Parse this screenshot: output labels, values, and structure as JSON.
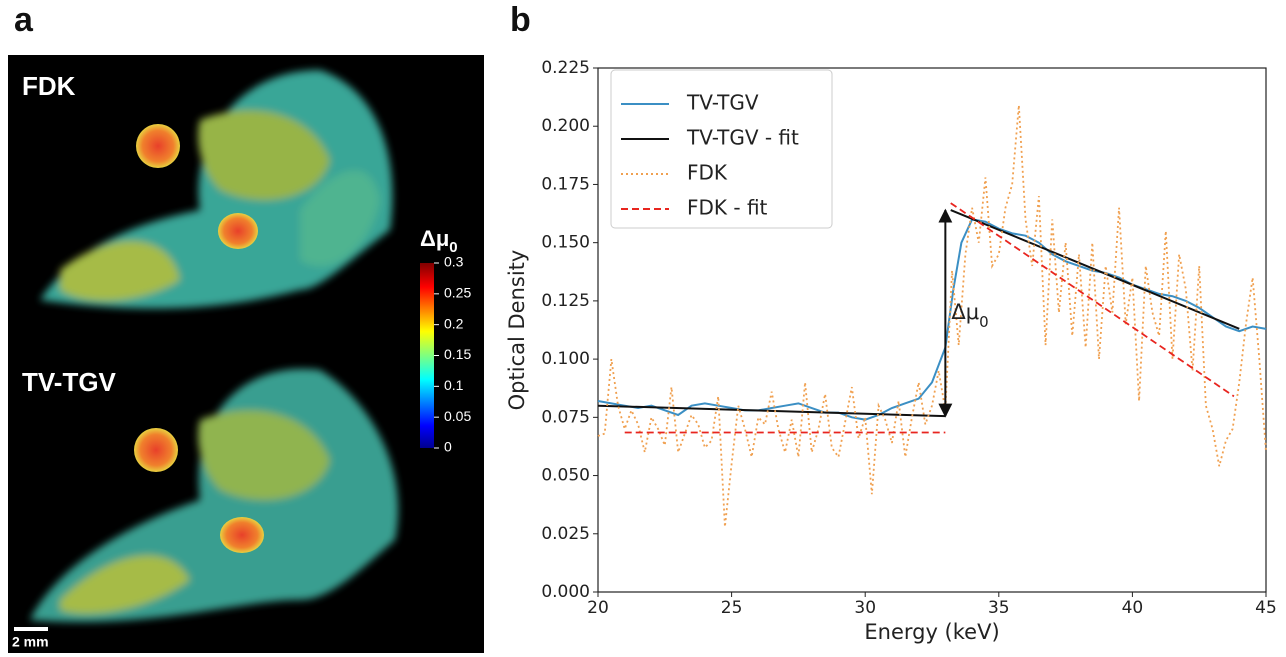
{
  "panel_a": {
    "label": "a",
    "top_label": "FDK",
    "bottom_label": "TV-TGV",
    "scale_bar": "2 mm",
    "colorbar": {
      "label": "Δμ",
      "subscript": "0",
      "lim": [
        0,
        0.3
      ],
      "ticks": [
        0,
        0.05,
        0.1,
        0.15,
        0.2,
        0.25,
        0.3
      ]
    }
  },
  "chart_data": {
    "type": "line",
    "label": "b",
    "x_label": "Energy (keV)",
    "y_label": "Optical Density",
    "xlim": [
      20,
      45
    ],
    "ylim": [
      0,
      0.225
    ],
    "xticks": [
      20,
      25,
      30,
      35,
      40,
      45
    ],
    "yticks": [
      {
        "value": 0,
        "label": "0.000"
      },
      {
        "value": 0.025,
        "label": "0.025"
      },
      {
        "value": 0.05,
        "label": "0.050"
      },
      {
        "value": 0.075,
        "label": "0.075"
      },
      {
        "value": 0.1,
        "label": "0.100"
      },
      {
        "value": 0.125,
        "label": "0.125"
      },
      {
        "value": 0.15,
        "label": "0.150"
      },
      {
        "value": 0.175,
        "label": "0.175"
      },
      {
        "value": 0.2,
        "label": "0.200"
      },
      {
        "value": 0.225,
        "label": "0.225"
      }
    ],
    "legend": "upper left",
    "series": [
      {
        "name": "TV-TGV",
        "color": "#3b8fc4",
        "style": "solid",
        "x": [
          20,
          20.5,
          21,
          21.5,
          22,
          22.5,
          23,
          23.5,
          24,
          24.5,
          25,
          25.5,
          26,
          26.5,
          27,
          27.5,
          28,
          28.5,
          29,
          29.5,
          30,
          30.5,
          31,
          31.5,
          32,
          32.5,
          33,
          33.3,
          33.6,
          34,
          34.5,
          35,
          35.5,
          36,
          36.5,
          37,
          37.5,
          38,
          38.5,
          39,
          39.5,
          40,
          40.5,
          41,
          41.5,
          42,
          42.5,
          43,
          43.5,
          44,
          44.5,
          45
        ],
        "values": [
          0.082,
          0.081,
          0.08,
          0.079,
          0.08,
          0.078,
          0.076,
          0.08,
          0.081,
          0.08,
          0.079,
          0.078,
          0.078,
          0.079,
          0.08,
          0.081,
          0.079,
          0.077,
          0.077,
          0.075,
          0.074,
          0.076,
          0.079,
          0.081,
          0.083,
          0.09,
          0.105,
          0.13,
          0.15,
          0.16,
          0.159,
          0.156,
          0.154,
          0.153,
          0.15,
          0.145,
          0.142,
          0.14,
          0.138,
          0.137,
          0.135,
          0.132,
          0.13,
          0.128,
          0.127,
          0.125,
          0.122,
          0.118,
          0.114,
          0.112,
          0.114,
          0.113
        ]
      },
      {
        "name": "TV-TGV - fit",
        "color": "#111111",
        "style": "solid",
        "x": [
          20,
          33,
          33.1,
          33.2,
          44
        ],
        "values": [
          0.08,
          0.0755,
          null,
          0.164,
          0.113
        ]
      },
      {
        "name": "FDK",
        "color": "#f0a050",
        "style": "dotted",
        "x": [
          20,
          20.25,
          20.5,
          20.75,
          21,
          21.25,
          21.5,
          21.75,
          22,
          22.25,
          22.5,
          22.75,
          23,
          23.25,
          23.5,
          23.75,
          24,
          24.25,
          24.5,
          24.75,
          25,
          25.25,
          25.5,
          25.75,
          26,
          26.25,
          26.5,
          26.75,
          27,
          27.25,
          27.5,
          27.75,
          28,
          28.25,
          28.5,
          28.75,
          29,
          29.25,
          29.5,
          29.75,
          30,
          30.25,
          30.5,
          30.75,
          31,
          31.25,
          31.5,
          31.75,
          32,
          32.25,
          32.5,
          32.75,
          33,
          33.25,
          33.5,
          33.75,
          34,
          34.25,
          34.5,
          34.75,
          35,
          35.25,
          35.5,
          35.75,
          36,
          36.25,
          36.5,
          36.75,
          37,
          37.25,
          37.5,
          37.75,
          38,
          38.25,
          38.5,
          38.75,
          39,
          39.25,
          39.5,
          39.75,
          40,
          40.25,
          40.5,
          40.75,
          41,
          41.25,
          41.5,
          41.75,
          42,
          42.25,
          42.5,
          42.75,
          43,
          43.25,
          43.5,
          43.75,
          44,
          44.25,
          44.5,
          44.75,
          45
        ],
        "values": [
          0.067,
          0.068,
          0.1,
          0.08,
          0.07,
          0.078,
          0.072,
          0.06,
          0.075,
          0.07,
          0.063,
          0.088,
          0.06,
          0.068,
          0.076,
          0.072,
          0.062,
          0.065,
          0.084,
          0.028,
          0.055,
          0.08,
          0.07,
          0.058,
          0.075,
          0.072,
          0.086,
          0.07,
          0.06,
          0.074,
          0.058,
          0.09,
          0.06,
          0.07,
          0.085,
          0.062,
          0.058,
          0.073,
          0.088,
          0.066,
          0.075,
          0.042,
          0.08,
          0.074,
          0.064,
          0.082,
          0.058,
          0.075,
          0.09,
          0.072,
          0.08,
          0.095,
          0.078,
          0.138,
          0.106,
          0.145,
          0.165,
          0.15,
          0.178,
          0.14,
          0.145,
          0.165,
          0.175,
          0.209,
          0.16,
          0.14,
          0.17,
          0.106,
          0.16,
          0.12,
          0.15,
          0.11,
          0.145,
          0.105,
          0.15,
          0.1,
          0.14,
          0.12,
          0.165,
          0.115,
          0.135,
          0.082,
          0.14,
          0.12,
          0.11,
          0.155,
          0.1,
          0.145,
          0.13,
          0.095,
          0.14,
          0.08,
          0.07,
          0.054,
          0.065,
          0.07,
          0.09,
          0.115,
          0.135,
          0.1,
          0.06
        ]
      },
      {
        "name": "FDK - fit",
        "color": "#e8251f",
        "style": "dashed",
        "x": [
          21,
          33,
          33.1,
          33.2,
          43.8
        ],
        "values": [
          0.0685,
          0.0685,
          null,
          0.167,
          0.084
        ]
      }
    ],
    "annotation": {
      "text": "Δμ",
      "subscript": "0",
      "arrow_x": 33,
      "arrow_from": 0.0755,
      "arrow_to": 0.164
    }
  }
}
